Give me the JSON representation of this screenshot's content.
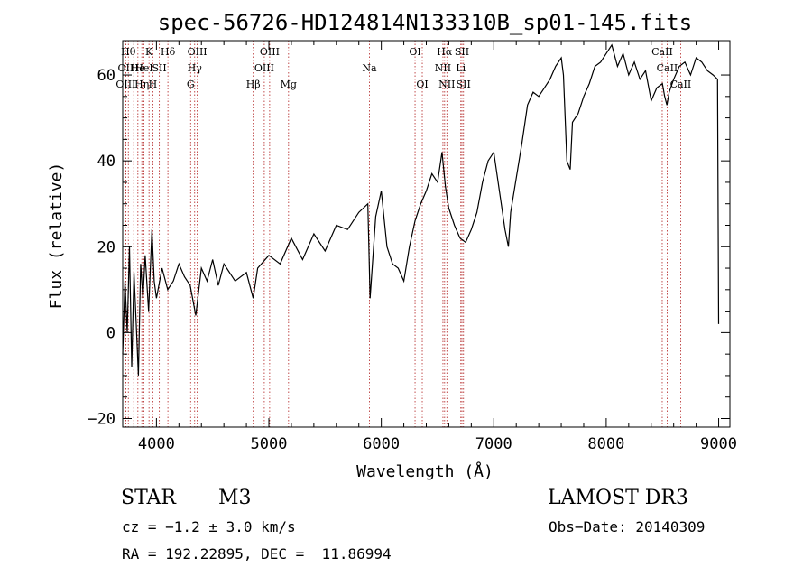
{
  "chart_data": {
    "type": "line",
    "title": "spec-56726-HD124814N133310B_sp01-145.fits",
    "xlabel": "Wavelength (Å)",
    "ylabel": "Flux (relative)",
    "xlim": [
      3700,
      9100
    ],
    "ylim": [
      -22,
      68
    ],
    "xticks": [
      4000,
      5000,
      6000,
      7000,
      8000,
      9000
    ],
    "yticks": [
      -20,
      0,
      20,
      40,
      60
    ],
    "series": [
      {
        "name": "flux",
        "x": [
          3700,
          3720,
          3740,
          3760,
          3780,
          3800,
          3820,
          3840,
          3860,
          3880,
          3900,
          3930,
          3960,
          3980,
          4000,
          4050,
          4100,
          4150,
          4200,
          4250,
          4300,
          4350,
          4400,
          4450,
          4500,
          4550,
          4600,
          4700,
          4800,
          4860,
          4900,
          5000,
          5100,
          5200,
          5300,
          5400,
          5500,
          5600,
          5700,
          5800,
          5880,
          5900,
          5950,
          6000,
          6050,
          6100,
          6150,
          6200,
          6250,
          6300,
          6350,
          6400,
          6450,
          6500,
          6540,
          6570,
          6600,
          6650,
          6700,
          6750,
          6800,
          6850,
          6900,
          6950,
          7000,
          7050,
          7100,
          7130,
          7150,
          7200,
          7250,
          7300,
          7350,
          7400,
          7450,
          7500,
          7550,
          7600,
          7620,
          7650,
          7680,
          7700,
          7750,
          7800,
          7850,
          7900,
          7950,
          8000,
          8050,
          8100,
          8150,
          8200,
          8250,
          8300,
          8350,
          8400,
          8450,
          8500,
          8520,
          8540,
          8560,
          8600,
          8650,
          8700,
          8750,
          8800,
          8850,
          8900,
          8950,
          8990,
          9000
        ],
        "values": [
          -5,
          12,
          0,
          20,
          -8,
          14,
          2,
          -10,
          16,
          8,
          18,
          5,
          24,
          12,
          8,
          15,
          10,
          12,
          16,
          13,
          11,
          4,
          15,
          12,
          17,
          11,
          16,
          12,
          14,
          8,
          15,
          18,
          16,
          22,
          17,
          23,
          19,
          25,
          24,
          28,
          30,
          8,
          27,
          33,
          20,
          16,
          15,
          12,
          20,
          26,
          30,
          33,
          37,
          35,
          42,
          34,
          29,
          25,
          22,
          21,
          24,
          28,
          35,
          40,
          42,
          33,
          24,
          20,
          28,
          36,
          44,
          53,
          56,
          55,
          57,
          59,
          62,
          64,
          60,
          40,
          38,
          49,
          51,
          55,
          58,
          62,
          63,
          65,
          67,
          62,
          65,
          60,
          63,
          59,
          61,
          54,
          57,
          58,
          55,
          53,
          56,
          59,
          62,
          63,
          60,
          64,
          63,
          61,
          60,
          59,
          2
        ]
      }
    ],
    "line_markers": [
      {
        "wl": 3750,
        "label": "Hθ",
        "row": 0
      },
      {
        "wl": 3727,
        "label": "OII",
        "row": 1
      },
      {
        "wl": 3727,
        "label": "OIII",
        "row": 2
      },
      {
        "wl": 3798,
        "label": "",
        "row": 0
      },
      {
        "wl": 3835,
        "label": "He",
        "row": 1
      },
      {
        "wl": 3870,
        "label": "Hη",
        "row": 2
      },
      {
        "wl": 3934,
        "label": "K",
        "row": 0
      },
      {
        "wl": 3889,
        "label": "HeI",
        "row": 1
      },
      {
        "wl": 3968,
        "label": "H",
        "row": 2
      },
      {
        "wl": 4026,
        "label": "SII",
        "row": 1
      },
      {
        "wl": 4102,
        "label": "Hδ",
        "row": 0
      },
      {
        "wl": 4304,
        "label": "G",
        "row": 2
      },
      {
        "wl": 4340,
        "label": "Hγ",
        "row": 1
      },
      {
        "wl": 4363,
        "label": "OIII",
        "row": 0
      },
      {
        "wl": 4861,
        "label": "Hβ",
        "row": 2
      },
      {
        "wl": 4959,
        "label": "OIII",
        "row": 1
      },
      {
        "wl": 5007,
        "label": "OIII",
        "row": 0
      },
      {
        "wl": 5175,
        "label": "Mg",
        "row": 2
      },
      {
        "wl": 5894,
        "label": "Na",
        "row": 1
      },
      {
        "wl": 6300,
        "label": "OI",
        "row": 0
      },
      {
        "wl": 6364,
        "label": "OI",
        "row": 2
      },
      {
        "wl": 6548,
        "label": "NII",
        "row": 1
      },
      {
        "wl": 6563,
        "label": "Hα",
        "row": 0
      },
      {
        "wl": 6583,
        "label": "NII",
        "row": 2
      },
      {
        "wl": 6707,
        "label": "Li",
        "row": 1
      },
      {
        "wl": 6717,
        "label": "SII",
        "row": 0
      },
      {
        "wl": 6731,
        "label": "SII",
        "row": 2
      },
      {
        "wl": 8498,
        "label": "CaII",
        "row": 0
      },
      {
        "wl": 8542,
        "label": "CaII",
        "row": 1
      },
      {
        "wl": 8662,
        "label": "CaII",
        "row": 2
      }
    ]
  },
  "info": {
    "object_class": "STAR",
    "subclass": "M3",
    "survey": "LAMOST DR3",
    "cz": "cz = −1.2 ± 3.0 km/s",
    "obs_date": "Obs−Date: 20140309",
    "coords": "RA = 192.22895, DEC =  11.86994"
  }
}
